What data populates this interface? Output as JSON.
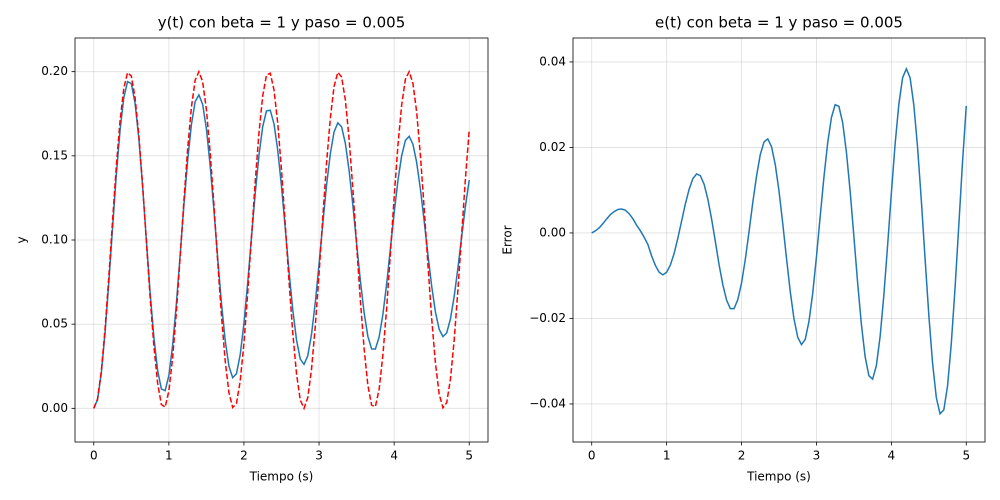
{
  "chart_data": [
    {
      "type": "line",
      "title": "y(t) con beta = 1 y paso = 0.005",
      "xlabel": "Tiempo (s)",
      "ylabel": "y",
      "x": [
        0,
        0.05,
        0.1,
        0.15,
        0.2,
        0.25,
        0.3,
        0.35,
        0.4,
        0.45,
        0.5,
        0.55,
        0.6,
        0.65,
        0.7,
        0.75,
        0.8,
        0.85,
        0.9,
        0.95,
        1,
        1.05,
        1.1,
        1.15,
        1.2,
        1.25,
        1.3,
        1.35,
        1.4,
        1.45,
        1.5,
        1.55,
        1.6,
        1.65,
        1.7,
        1.75,
        1.8,
        1.85,
        1.9,
        1.95,
        2,
        2.05,
        2.1,
        2.15,
        2.2,
        2.25,
        2.3,
        2.35,
        2.4,
        2.45,
        2.5,
        2.55,
        2.6,
        2.65,
        2.7,
        2.75,
        2.8,
        2.85,
        2.9,
        2.95,
        3,
        3.05,
        3.1,
        3.15,
        3.2,
        3.25,
        3.3,
        3.35,
        3.4,
        3.45,
        3.5,
        3.55,
        3.6,
        3.65,
        3.7,
        3.75,
        3.8,
        3.85,
        3.9,
        3.95,
        4,
        4.05,
        4.1,
        4.15,
        4.2,
        4.25,
        4.3,
        4.35,
        4.4,
        4.45,
        4.5,
        4.55,
        4.6,
        4.65,
        4.7,
        4.75,
        4.8,
        4.85,
        4.9,
        4.95,
        5
      ],
      "series": [
        {
          "color": "#1f77b4",
          "linestyle": "solid",
          "values": [
            0,
            0.0051,
            0.0207,
            0.0447,
            0.0746,
            0.1071,
            0.1386,
            0.1652,
            0.1846,
            0.1941,
            0.1929,
            0.1812,
            0.1603,
            0.1322,
            0.1004,
            0.069,
            0.0425,
            0.0226,
            0.0115,
            0.0105,
            0.0195,
            0.0374,
            0.0622,
            0.0909,
            0.1204,
            0.1472,
            0.1685,
            0.1822,
            0.1862,
            0.1806,
            0.166,
            0.1442,
            0.1177,
            0.0894,
            0.0627,
            0.0404,
            0.025,
            0.0182,
            0.0206,
            0.0318,
            0.0506,
            0.0747,
            0.1014,
            0.1276,
            0.1504,
            0.1674,
            0.1767,
            0.1771,
            0.169,
            0.1533,
            0.1318,
            0.107,
            0.0815,
            0.0586,
            0.0406,
            0.0293,
            0.0261,
            0.0313,
            0.044,
            0.0629,
            0.0857,
            0.1097,
            0.1325,
            0.1512,
            0.1642,
            0.1696,
            0.1673,
            0.1575,
            0.1413,
            0.1208,
            0.0981,
            0.076,
            0.0569,
            0.0428,
            0.0353,
            0.0352,
            0.0423,
            0.0557,
            0.0739,
            0.0948,
            0.116,
            0.1351,
            0.15,
            0.1592,
            0.1616,
            0.1569,
            0.1461,
            0.1302,
            0.1113,
            0.0913,
            0.0726,
            0.0572,
            0.0469,
            0.0426,
            0.0448,
            0.0532,
            0.0666,
            0.0836,
            0.1022,
            0.1202,
            0.1356
          ]
        },
        {
          "color": "#ff0000",
          "linestyle": "dashed",
          "values": [
            0,
            0.0056,
            0.0219,
            0.0469,
            0.0779,
            0.1114,
            0.1436,
            0.1707,
            0.1902,
            0.1994,
            0.1974,
            0.1845,
            0.1621,
            0.1327,
            0.0994,
            0.0663,
            0.0371,
            0.015,
            0.0023,
            0.0007,
            0.0103,
            0.0299,
            0.0574,
            0.0897,
            0.1232,
            0.154,
            0.1787,
            0.1949,
            0.2,
            0.194,
            0.1774,
            0.1521,
            0.121,
            0.0874,
            0.0553,
            0.0283,
            0.0093,
            0.0005,
            0.0029,
            0.0162,
            0.0389,
            0.0685,
            0.1017,
            0.1347,
            0.1637,
            0.1857,
            0.198,
            0.1991,
            0.1892,
            0.1693,
            0.1416,
            0.1092,
            0.0756,
            0.0449,
            0.0205,
            0.0049,
            0,
            0.0064,
            0.0233,
            0.0488,
            0.0801,
            0.1136,
            0.1456,
            0.1723,
            0.1912,
            0.1996,
            0.1969,
            0.1833,
            0.1602,
            0.1305,
            0.0972,
            0.0643,
            0.0355,
            0.0138,
            0.0019,
            0.001,
            0.0113,
            0.0315,
            0.0594,
            0.0919,
            0.1253,
            0.1559,
            0.1801,
            0.1955,
            0.2,
            0.1932,
            0.176,
            0.1502,
            0.1189,
            0.0853,
            0.0534,
            0.0268,
            0.0084,
            0.0003,
            0.0034,
            0.0174,
            0.0407,
            0.0707,
            0.1039,
            0.1368,
            0.1653
          ]
        }
      ],
      "xlim": [
        -0.25,
        5.25
      ],
      "xticks": [
        0,
        1,
        2,
        3,
        4,
        5
      ],
      "ylim": [
        -0.02,
        0.22
      ],
      "yticks": [
        {
          "value": 0,
          "label": "0.00"
        },
        {
          "value": 0.05,
          "label": "0.05"
        },
        {
          "value": 0.1,
          "label": "0.10"
        },
        {
          "value": 0.15,
          "label": "0.15"
        },
        {
          "value": 0.2,
          "label": "0.20"
        }
      ],
      "grid": true
    },
    {
      "type": "line",
      "title": "e(t) con beta = 1 y paso = 0.005",
      "xlabel": "Tiempo (s)",
      "ylabel": "Error",
      "x": [
        0,
        0.05,
        0.1,
        0.15,
        0.2,
        0.25,
        0.3,
        0.35,
        0.4,
        0.45,
        0.5,
        0.55,
        0.6,
        0.65,
        0.7,
        0.75,
        0.8,
        0.85,
        0.9,
        0.95,
        1,
        1.05,
        1.1,
        1.15,
        1.2,
        1.25,
        1.3,
        1.35,
        1.4,
        1.45,
        1.5,
        1.55,
        1.6,
        1.65,
        1.7,
        1.75,
        1.8,
        1.85,
        1.9,
        1.95,
        2,
        2.05,
        2.1,
        2.15,
        2.2,
        2.25,
        2.3,
        2.35,
        2.4,
        2.45,
        2.5,
        2.55,
        2.6,
        2.65,
        2.7,
        2.75,
        2.8,
        2.85,
        2.9,
        2.95,
        3,
        3.05,
        3.1,
        3.15,
        3.2,
        3.25,
        3.3,
        3.35,
        3.4,
        3.45,
        3.5,
        3.55,
        3.6,
        3.65,
        3.7,
        3.75,
        3.8,
        3.85,
        3.9,
        3.95,
        4,
        4.05,
        4.1,
        4.15,
        4.2,
        4.25,
        4.3,
        4.35,
        4.4,
        4.45,
        4.5,
        4.55,
        4.6,
        4.65,
        4.7,
        4.75,
        4.8,
        4.85,
        4.9,
        4.95,
        5
      ],
      "series": [
        {
          "color": "#1f77b4",
          "linestyle": "solid",
          "values": [
            0,
            0.0005,
            0.0012,
            0.0022,
            0.0033,
            0.0043,
            0.005,
            0.0055,
            0.0056,
            0.0053,
            0.0045,
            0.0033,
            0.0018,
            0.0005,
            -0.001,
            -0.0027,
            -0.0054,
            -0.0076,
            -0.0092,
            -0.0098,
            -0.0092,
            -0.0075,
            -0.0048,
            -0.0012,
            0.0028,
            0.0068,
            0.0102,
            0.0127,
            0.0138,
            0.0134,
            0.0114,
            0.0079,
            0.0033,
            -0.002,
            -0.0074,
            -0.0121,
            -0.0157,
            -0.0177,
            -0.0177,
            -0.0156,
            -0.0117,
            -0.0062,
            0.0003,
            0.0071,
            0.0133,
            0.0183,
            0.0213,
            0.022,
            0.0202,
            0.016,
            0.0098,
            0.0022,
            -0.0059,
            -0.0137,
            -0.0201,
            -0.0244,
            -0.0261,
            -0.0249,
            -0.0207,
            -0.0141,
            -0.0056,
            0.0039,
            0.0131,
            0.0211,
            0.027,
            0.03,
            0.0296,
            0.0258,
            0.0189,
            0.0097,
            -0.0009,
            -0.0117,
            -0.0214,
            -0.029,
            -0.0334,
            -0.0342,
            -0.031,
            -0.0242,
            -0.0145,
            -0.0029,
            0.0093,
            0.0208,
            0.0301,
            0.0363,
            0.0384,
            0.0363,
            0.0299,
            0.02,
            0.0076,
            -0.006,
            -0.0192,
            -0.0304,
            -0.0385,
            -0.0423,
            -0.0414,
            -0.0358,
            -0.0259,
            -0.0129,
            0.0017,
            0.0166,
            0.0297
          ]
        }
      ],
      "xlim": [
        -0.25,
        5.25
      ],
      "xticks": [
        0,
        1,
        2,
        3,
        4,
        5
      ],
      "ylim": [
        -0.0489,
        0.0456
      ],
      "yticks": [
        {
          "value": -0.04,
          "label": "−0.04"
        },
        {
          "value": -0.02,
          "label": "−0.02"
        },
        {
          "value": 0,
          "label": "0.00"
        },
        {
          "value": 0.02,
          "label": "0.02"
        },
        {
          "value": 0.04,
          "label": "0.04"
        }
      ],
      "grid": true
    }
  ]
}
